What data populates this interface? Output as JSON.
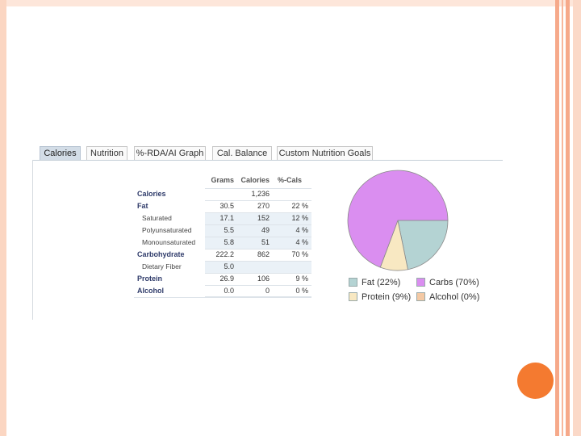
{
  "tabs": [
    {
      "label": "Calories",
      "active": true
    },
    {
      "label": "Nutrition",
      "active": false
    },
    {
      "label": "%-RDA/AI Graph",
      "active": false
    },
    {
      "label": "Cal. Balance",
      "active": false
    },
    {
      "label": "Custom Nutrition Goals",
      "active": false
    }
  ],
  "table": {
    "headers": {
      "grams": "Grams",
      "calories": "Calories",
      "pct": "%-Cals"
    },
    "rows": [
      {
        "label": "Calories",
        "grams": "",
        "calories": "1,236",
        "pct": ""
      },
      {
        "label": "Fat",
        "grams": "30.5",
        "calories": "270",
        "pct": "22 %"
      },
      {
        "label": "Saturated",
        "grams": "17.1",
        "calories": "152",
        "pct": "12 %"
      },
      {
        "label": "Polyunsaturated",
        "grams": "5.5",
        "calories": "49",
        "pct": "4 %"
      },
      {
        "label": "Monounsaturated",
        "grams": "5.8",
        "calories": "51",
        "pct": "4 %"
      },
      {
        "label": "Carbohydrate",
        "grams": "222.2",
        "calories": "862",
        "pct": "70 %"
      },
      {
        "label": "Dietary Fiber",
        "grams": "5.0",
        "calories": "",
        "pct": ""
      },
      {
        "label": "Protein",
        "grams": "26.9",
        "calories": "106",
        "pct": "9 %"
      },
      {
        "label": "Alcohol",
        "grams": "0.0",
        "calories": "0",
        "pct": "0 %"
      }
    ]
  },
  "chart_data": {
    "type": "pie",
    "series": [
      {
        "name": "Fat",
        "value": 22,
        "color": "#b4d3d3"
      },
      {
        "name": "Carbs",
        "value": 70,
        "color": "#da8ef0"
      },
      {
        "name": "Protein",
        "value": 9,
        "color": "#f8e8c2"
      },
      {
        "name": "Alcohol",
        "value": 0,
        "color": "#f4c9a4"
      }
    ],
    "legend": {
      "fat": "Fat (22%)",
      "carbs": "Carbs (70%)",
      "protein": "Protein (9%)",
      "alcohol": "Alcohol (0%)"
    }
  }
}
